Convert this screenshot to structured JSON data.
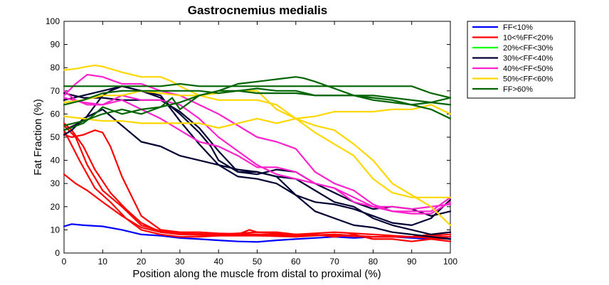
{
  "chart_data": {
    "type": "line",
    "title": "Gastrocnemius medialis",
    "xlabel": "Position along the muscle from distal to proximal (%)",
    "ylabel": "Fat Fraction (%)",
    "xlim": [
      0,
      100
    ],
    "ylim": [
      0,
      100
    ],
    "xticks": [
      0,
      10,
      20,
      30,
      40,
      50,
      60,
      70,
      80,
      90,
      100
    ],
    "yticks": [
      0,
      10,
      20,
      30,
      40,
      50,
      60,
      70,
      80,
      90,
      100
    ],
    "legend_position": "outside-top-right",
    "groups": [
      {
        "name": "FF<10%",
        "color": "#0000ff",
        "lines": [
          {
            "x": [
              0,
              2,
              5,
              10,
              15,
              20,
              25,
              30,
              35,
              40,
              45,
              50,
              55,
              60,
              65,
              70,
              75,
              80,
              85,
              90,
              95,
              100
            ],
            "y": [
              11.5,
              12.5,
              12,
              11.5,
              10,
              8,
              7.5,
              6.5,
              6,
              5.5,
              5,
              4.8,
              5.5,
              6,
              6.5,
              7,
              6.5,
              7,
              7,
              6.5,
              6,
              7
            ]
          }
        ]
      },
      {
        "name": "10<%FF<20%",
        "color": "#ff0000",
        "lines": [
          {
            "x": [
              0,
              3,
              6,
              10,
              15,
              20,
              25,
              30,
              40,
              50,
              60,
              70,
              80,
              90,
              100
            ],
            "y": [
              34,
              30,
              27,
              22,
              16,
              11,
              9,
              8.5,
              8,
              8,
              8,
              7.5,
              7,
              7,
              7
            ]
          },
          {
            "x": [
              0,
              2,
              5,
              8,
              12,
              16,
              20,
              25,
              30,
              40,
              50,
              60,
              70,
              80,
              90,
              100
            ],
            "y": [
              56,
              53,
              46,
              36,
              26,
              19,
              13,
              9,
              8,
              7.5,
              7.5,
              7,
              8,
              7,
              7,
              6
            ]
          },
          {
            "x": [
              0,
              2,
              5,
              8,
              10,
              12,
              15,
              20,
              25,
              30,
              35,
              40,
              50,
              60,
              70,
              80,
              90,
              100
            ],
            "y": [
              51,
              50,
              51,
              53,
              52,
              46,
              33,
              16,
              10,
              9,
              9,
              8.5,
              8,
              7.5,
              8,
              7,
              7,
              8
            ]
          },
          {
            "x": [
              0,
              3,
              6,
              10,
              15,
              20,
              25,
              30,
              40,
              50,
              60,
              70,
              80,
              90,
              100
            ],
            "y": [
              55,
              50,
              38,
              27,
              20,
              12,
              9.5,
              8.5,
              8,
              9,
              8,
              9,
              8,
              7,
              9
            ]
          },
          {
            "x": [
              0,
              4,
              8,
              12,
              16,
              20,
              25,
              30,
              35,
              40,
              45,
              48,
              50,
              55,
              60,
              65,
              70,
              75,
              80,
              85,
              90,
              95,
              100
            ],
            "y": [
              53,
              40,
              28,
              22,
              15,
              10,
              8,
              7,
              7,
              7.5,
              8,
              10,
              9,
              9,
              8,
              8,
              7,
              8,
              6,
              6,
              5,
              6,
              5
            ]
          }
        ]
      },
      {
        "name": "20%<FF<30%",
        "color": "#00ff00",
        "lines": []
      },
      {
        "name": "30%<FF<40%",
        "color": "#000033",
        "lines": [
          {
            "x": [
              0,
              2,
              5,
              10,
              15,
              20,
              25,
              30,
              35,
              40,
              45,
              50,
              55,
              60,
              65,
              70,
              75,
              80,
              85,
              90,
              95,
              100
            ],
            "y": [
              51,
              53,
              58,
              62,
              55,
              48,
              46,
              42,
              40,
              38,
              36,
              35,
              33,
              25,
              18,
              15,
              12,
              11,
              9,
              8,
              7,
              6
            ]
          },
          {
            "x": [
              0,
              5,
              10,
              12,
              15,
              20,
              25,
              30,
              35,
              38,
              40,
              45,
              50,
              55,
              60,
              65,
              70,
              75,
              80,
              85,
              90,
              95,
              100
            ],
            "y": [
              53,
              57,
              68,
              70,
              72,
              70,
              67,
              60,
              52,
              46,
              40,
              35,
              35,
              33,
              32,
              27,
              22,
              20,
              15,
              12,
              10,
              8,
              9
            ]
          },
          {
            "x": [
              0,
              5,
              10,
              15,
              20,
              25,
              30,
              35,
              40,
              45,
              50,
              55,
              60,
              65,
              70,
              75,
              80,
              85,
              90,
              95,
              100
            ],
            "y": [
              66,
              68,
              70,
              72,
              70,
              68,
              57,
              47,
              38,
              33,
              32,
              30,
              25,
              22,
              21,
              19,
              16,
              13,
              12,
              15,
              23
            ]
          },
          {
            "x": [
              0,
              5,
              10,
              15,
              20,
              25,
              30,
              35,
              40,
              45,
              50,
              55,
              60,
              65,
              70,
              75,
              80,
              85,
              90,
              95,
              100
            ],
            "y": [
              69,
              67,
              67,
              66,
              66,
              66,
              61,
              54,
              44,
              35,
              34,
              36,
              35,
              30,
              26,
              22,
              19,
              20,
              19,
              16,
              18
            ]
          }
        ]
      },
      {
        "name": "40%<FF<50%",
        "color": "#ff22cc",
        "lines": [
          {
            "x": [
              0,
              3,
              6,
              10,
              15,
              20,
              25,
              30,
              35,
              40,
              45,
              50,
              55,
              60,
              65,
              70,
              75,
              80,
              85,
              90,
              95,
              100
            ],
            "y": [
              68,
              73,
              77,
              76,
              73,
              73,
              70,
              68,
              64,
              60,
              55,
              50,
              48,
              45,
              35,
              30,
              27,
              21,
              18,
              18,
              18,
              24
            ]
          },
          {
            "x": [
              0,
              3,
              6,
              10,
              15,
              20,
              25,
              30,
              35,
              40,
              45,
              50,
              55,
              60,
              65,
              70,
              75,
              80,
              85,
              90,
              95,
              100
            ],
            "y": [
              70,
              66,
              64,
              64,
              66,
              62,
              58,
              53,
              48,
              46,
              42,
              37,
              37,
              35,
              30,
              28,
              22,
              20,
              20,
              19,
              20,
              21
            ]
          },
          {
            "x": [
              0,
              5,
              10,
              15,
              20,
              25,
              30,
              35,
              40,
              45,
              50,
              55,
              60,
              65,
              70,
              75,
              80,
              85,
              90,
              95,
              100
            ],
            "y": [
              67,
              65,
              64,
              68,
              66,
              66,
              64,
              58,
              50,
              44,
              38,
              34,
              32,
              30,
              28,
              24,
              20,
              18,
              17,
              17,
              22
            ]
          }
        ]
      },
      {
        "name": "50%<FF<60%",
        "color": "#ffd700",
        "lines": [
          {
            "x": [
              0,
              3,
              6,
              8,
              10,
              15,
              20,
              25,
              28,
              30,
              35,
              40,
              45,
              50,
              55,
              60,
              65,
              70,
              75,
              80,
              85,
              90,
              95,
              100
            ],
            "y": [
              79,
              79.5,
              80.5,
              81,
              80.5,
              78,
              76,
              76,
              74,
              72,
              68,
              66,
              66,
              66,
              64,
              58,
              52,
              47,
              42,
              32,
              26,
              24,
              24,
              24
            ]
          },
          {
            "x": [
              0,
              5,
              10,
              15,
              20,
              25,
              30,
              35,
              40,
              45,
              50,
              55,
              60,
              65,
              70,
              75,
              80,
              85,
              90,
              95,
              100
            ],
            "y": [
              59,
              58,
              57,
              57,
              56,
              56,
              56,
              56,
              54,
              56,
              58,
              56,
              58,
              59,
              61,
              61,
              61,
              62,
              62,
              64,
              60
            ]
          },
          {
            "x": [
              0,
              5,
              10,
              15,
              20,
              25,
              30,
              35,
              40,
              45,
              50,
              55,
              60,
              65,
              70,
              75,
              80,
              85,
              90,
              95,
              100
            ],
            "y": [
              65,
              66,
              68,
              68,
              70,
              69,
              68,
              68,
              69,
              70,
              70,
              62,
              58,
              55,
              53,
              47,
              40,
              30,
              25,
              20,
              12
            ]
          }
        ]
      },
      {
        "name": "FF>60%",
        "color": "#006400",
        "lines": [
          {
            "x": [
              0,
              5,
              10,
              15,
              20,
              25,
              30,
              35,
              40,
              45,
              50,
              55,
              60,
              65,
              70,
              75,
              80,
              85,
              90,
              95,
              100
            ],
            "y": [
              72,
              72,
              72,
              72,
              72,
              72,
              73,
              72,
              72,
              72,
              72,
              72,
              72,
              72,
              72,
              72,
              72,
              72,
              72,
              69,
              67
            ]
          },
          {
            "x": [
              0,
              5,
              10,
              15,
              20,
              25,
              30,
              35,
              40,
              45,
              50,
              55,
              60,
              62,
              65,
              70,
              75,
              80,
              85,
              90,
              95,
              100
            ],
            "y": [
              55,
              57,
              60,
              62,
              60,
              63,
              65,
              68,
              70,
              73,
              74,
              75,
              76,
              75.5,
              74,
              71,
              68,
              66,
              65,
              64,
              62,
              58
            ]
          },
          {
            "x": [
              0,
              5,
              8,
              10,
              15,
              20,
              25,
              28,
              30,
              35,
              40,
              45,
              50,
              55,
              60,
              65,
              70,
              75,
              80,
              85,
              90,
              95,
              100
            ],
            "y": [
              53,
              56,
              60,
              63,
              60,
              62,
              63,
              67,
              62,
              68,
              70,
              70,
              71,
              70,
              70,
              68,
              68,
              68,
              67,
              66,
              64,
              65,
              67
            ]
          },
          {
            "x": [
              0,
              5,
              10,
              15,
              20,
              25,
              30,
              35,
              40,
              45,
              50,
              55,
              60,
              65,
              70,
              75,
              80,
              85,
              90,
              95,
              100
            ],
            "y": [
              64,
              66,
              69,
              70,
              70,
              70,
              70,
              70,
              69,
              70,
              69,
              69,
              69,
              68,
              68,
              68,
              68,
              67,
              66,
              65,
              64
            ]
          }
        ]
      }
    ]
  }
}
